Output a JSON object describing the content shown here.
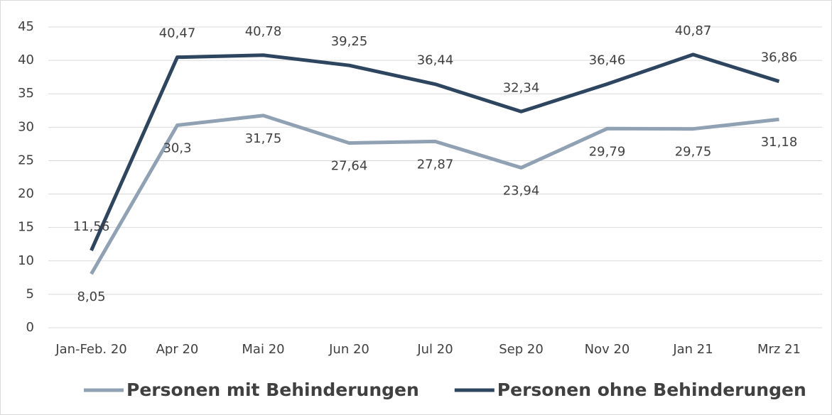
{
  "chart_data": {
    "type": "line",
    "categories": [
      "Jan-Feb. 20",
      "Apr 20",
      "Mai 20",
      "Jun 20",
      "Jul 20",
      "Sep 20",
      "Nov 20",
      "Jan 21",
      "Mrz 21"
    ],
    "series": [
      {
        "name": "Personen mit Behinderungen",
        "color": "#8fa1b3",
        "values": [
          8.05,
          30.3,
          31.75,
          27.64,
          27.87,
          23.94,
          29.79,
          29.75,
          31.18
        ],
        "value_labels": [
          "8,05",
          "30,3",
          "31,75",
          "27,64",
          "27,87",
          "23,94",
          "29,79",
          "29,75",
          "31,18"
        ]
      },
      {
        "name": "Personen ohne Behinderungen",
        "color": "#2e4560",
        "values": [
          11.56,
          40.47,
          40.78,
          39.25,
          36.44,
          32.34,
          36.46,
          40.87,
          36.86
        ],
        "value_labels": [
          "11,56",
          "40,47",
          "40,78",
          "39,25",
          "36,44",
          "32,34",
          "36,46",
          "40,87",
          "36,86"
        ]
      }
    ],
    "ylim": [
      0,
      45
    ],
    "yticks": [
      0,
      5,
      10,
      15,
      20,
      25,
      30,
      35,
      40,
      45
    ],
    "grid": true,
    "legend": "bottom"
  }
}
